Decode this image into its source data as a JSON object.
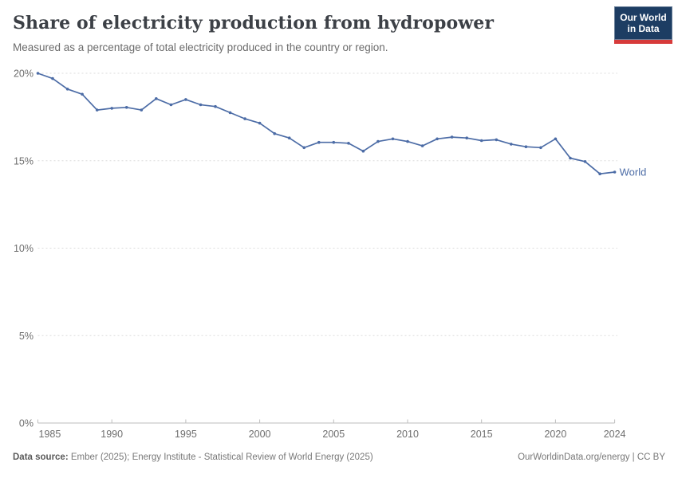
{
  "header": {
    "title": "Share of electricity production from hydropower",
    "subtitle": "Measured as a percentage of total electricity produced in the country or region."
  },
  "logo": {
    "line1": "Our World",
    "line2": "in Data",
    "bg_color": "#1d3d63",
    "bar_color": "#d73a3a"
  },
  "chart_data": {
    "type": "line",
    "title": "Share of electricity production from hydropower",
    "xlabel": "",
    "ylabel": "",
    "ylim": [
      0,
      20
    ],
    "yticks": [
      0,
      5,
      10,
      15,
      20
    ],
    "ytick_suffix": "%",
    "xticks": [
      1985,
      1990,
      1995,
      2000,
      2005,
      2010,
      2015,
      2020,
      2024
    ],
    "grid": "dashed-horizontal",
    "legend_position": "end-of-line",
    "line_color": "#4c6ca6",
    "x": [
      1985,
      1986,
      1987,
      1988,
      1989,
      1990,
      1991,
      1992,
      1993,
      1994,
      1995,
      1996,
      1997,
      1998,
      1999,
      2000,
      2001,
      2002,
      2003,
      2004,
      2005,
      2006,
      2007,
      2008,
      2009,
      2010,
      2011,
      2012,
      2013,
      2014,
      2015,
      2016,
      2017,
      2018,
      2019,
      2020,
      2021,
      2022,
      2023,
      2024
    ],
    "series": [
      {
        "name": "World",
        "values": [
          20.0,
          19.7,
          19.1,
          18.8,
          17.9,
          18.0,
          18.05,
          17.9,
          18.55,
          18.2,
          18.5,
          18.2,
          18.1,
          17.75,
          17.4,
          17.15,
          16.55,
          16.3,
          15.75,
          16.05,
          16.05,
          16.0,
          15.55,
          16.1,
          16.25,
          16.1,
          15.85,
          16.25,
          16.35,
          16.3,
          16.15,
          16.2,
          15.95,
          15.8,
          15.75,
          16.25,
          15.15,
          14.95,
          14.25,
          14.35
        ]
      }
    ]
  },
  "footer": {
    "source_label": "Data source:",
    "source_text": " Ember (2025); Energy Institute - Statistical Review of World Energy (2025)",
    "credit": "OurWorldinData.org/energy | CC BY"
  }
}
